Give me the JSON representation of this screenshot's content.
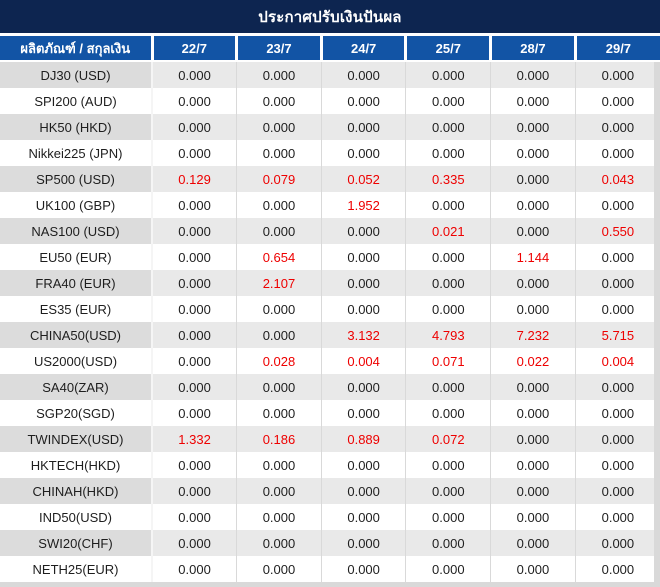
{
  "title": "ประกาศปรับเงินปันผล",
  "colors": {
    "title_bar_bg": "#0d2550",
    "header_bg": "#1254a5",
    "page_bg": "#d9d9d9",
    "divider_color": "#d9d9d9",
    "row_alt_bg": "#e9e9e9",
    "row_alt_label_bg": "#dcdcdc",
    "text_color": "#1e1e1e",
    "highlight_red": "#ee0000"
  },
  "table": {
    "product_header": "ผลิตภัณฑ์ / สกุลเงิน",
    "date_columns": [
      "22/7",
      "23/7",
      "24/7",
      "25/7",
      "28/7",
      "29/7"
    ],
    "rows": [
      {
        "product": "DJ30 (USD)",
        "values": [
          "0.000",
          "0.000",
          "0.000",
          "0.000",
          "0.000",
          "0.000"
        ],
        "red": [
          false,
          false,
          false,
          false,
          false,
          false
        ]
      },
      {
        "product": "SPI200 (AUD)",
        "values": [
          "0.000",
          "0.000",
          "0.000",
          "0.000",
          "0.000",
          "0.000"
        ],
        "red": [
          false,
          false,
          false,
          false,
          false,
          false
        ]
      },
      {
        "product": "HK50 (HKD)",
        "values": [
          "0.000",
          "0.000",
          "0.000",
          "0.000",
          "0.000",
          "0.000"
        ],
        "red": [
          false,
          false,
          false,
          false,
          false,
          false
        ]
      },
      {
        "product": "Nikkei225 (JPN)",
        "values": [
          "0.000",
          "0.000",
          "0.000",
          "0.000",
          "0.000",
          "0.000"
        ],
        "red": [
          false,
          false,
          false,
          false,
          false,
          false
        ]
      },
      {
        "product": "SP500 (USD)",
        "values": [
          "0.129",
          "0.079",
          "0.052",
          "0.335",
          "0.000",
          "0.043"
        ],
        "red": [
          true,
          true,
          true,
          true,
          false,
          true
        ]
      },
      {
        "product": "UK100 (GBP)",
        "values": [
          "0.000",
          "0.000",
          "1.952",
          "0.000",
          "0.000",
          "0.000"
        ],
        "red": [
          false,
          false,
          true,
          false,
          false,
          false
        ]
      },
      {
        "product": "NAS100 (USD)",
        "values": [
          "0.000",
          "0.000",
          "0.000",
          "0.021",
          "0.000",
          "0.550"
        ],
        "red": [
          false,
          false,
          false,
          true,
          false,
          true
        ]
      },
      {
        "product": "EU50 (EUR)",
        "values": [
          "0.000",
          "0.654",
          "0.000",
          "0.000",
          "1.144",
          "0.000"
        ],
        "red": [
          false,
          true,
          false,
          false,
          true,
          false
        ]
      },
      {
        "product": "FRA40 (EUR)",
        "values": [
          "0.000",
          "2.107",
          "0.000",
          "0.000",
          "0.000",
          "0.000"
        ],
        "red": [
          false,
          true,
          false,
          false,
          false,
          false
        ]
      },
      {
        "product": "ES35 (EUR)",
        "values": [
          "0.000",
          "0.000",
          "0.000",
          "0.000",
          "0.000",
          "0.000"
        ],
        "red": [
          false,
          false,
          false,
          false,
          false,
          false
        ]
      },
      {
        "product": "CHINA50(USD)",
        "values": [
          "0.000",
          "0.000",
          "3.132",
          "4.793",
          "7.232",
          "5.715"
        ],
        "red": [
          false,
          false,
          true,
          true,
          true,
          true
        ]
      },
      {
        "product": "US2000(USD)",
        "values": [
          "0.000",
          "0.028",
          "0.004",
          "0.071",
          "0.022",
          "0.004"
        ],
        "red": [
          false,
          true,
          true,
          true,
          true,
          true
        ]
      },
      {
        "product": "SA40(ZAR)",
        "values": [
          "0.000",
          "0.000",
          "0.000",
          "0.000",
          "0.000",
          "0.000"
        ],
        "red": [
          false,
          false,
          false,
          false,
          false,
          false
        ]
      },
      {
        "product": "SGP20(SGD)",
        "values": [
          "0.000",
          "0.000",
          "0.000",
          "0.000",
          "0.000",
          "0.000"
        ],
        "red": [
          false,
          false,
          false,
          false,
          false,
          false
        ]
      },
      {
        "product": "TWINDEX(USD)",
        "values": [
          "1.332",
          "0.186",
          "0.889",
          "0.072",
          "0.000",
          "0.000"
        ],
        "red": [
          true,
          true,
          true,
          true,
          false,
          false
        ]
      },
      {
        "product": "HKTECH(HKD)",
        "values": [
          "0.000",
          "0.000",
          "0.000",
          "0.000",
          "0.000",
          "0.000"
        ],
        "red": [
          false,
          false,
          false,
          false,
          false,
          false
        ]
      },
      {
        "product": "CHINAH(HKD)",
        "values": [
          "0.000",
          "0.000",
          "0.000",
          "0.000",
          "0.000",
          "0.000"
        ],
        "red": [
          false,
          false,
          false,
          false,
          false,
          false
        ]
      },
      {
        "product": "IND50(USD)",
        "values": [
          "0.000",
          "0.000",
          "0.000",
          "0.000",
          "0.000",
          "0.000"
        ],
        "red": [
          false,
          false,
          false,
          false,
          false,
          false
        ]
      },
      {
        "product": "SWI20(CHF)",
        "values": [
          "0.000",
          "0.000",
          "0.000",
          "0.000",
          "0.000",
          "0.000"
        ],
        "red": [
          false,
          false,
          false,
          false,
          false,
          false
        ]
      },
      {
        "product": "NETH25(EUR)",
        "values": [
          "0.000",
          "0.000",
          "0.000",
          "0.000",
          "0.000",
          "0.000"
        ],
        "red": [
          false,
          false,
          false,
          false,
          false,
          false
        ]
      }
    ]
  }
}
